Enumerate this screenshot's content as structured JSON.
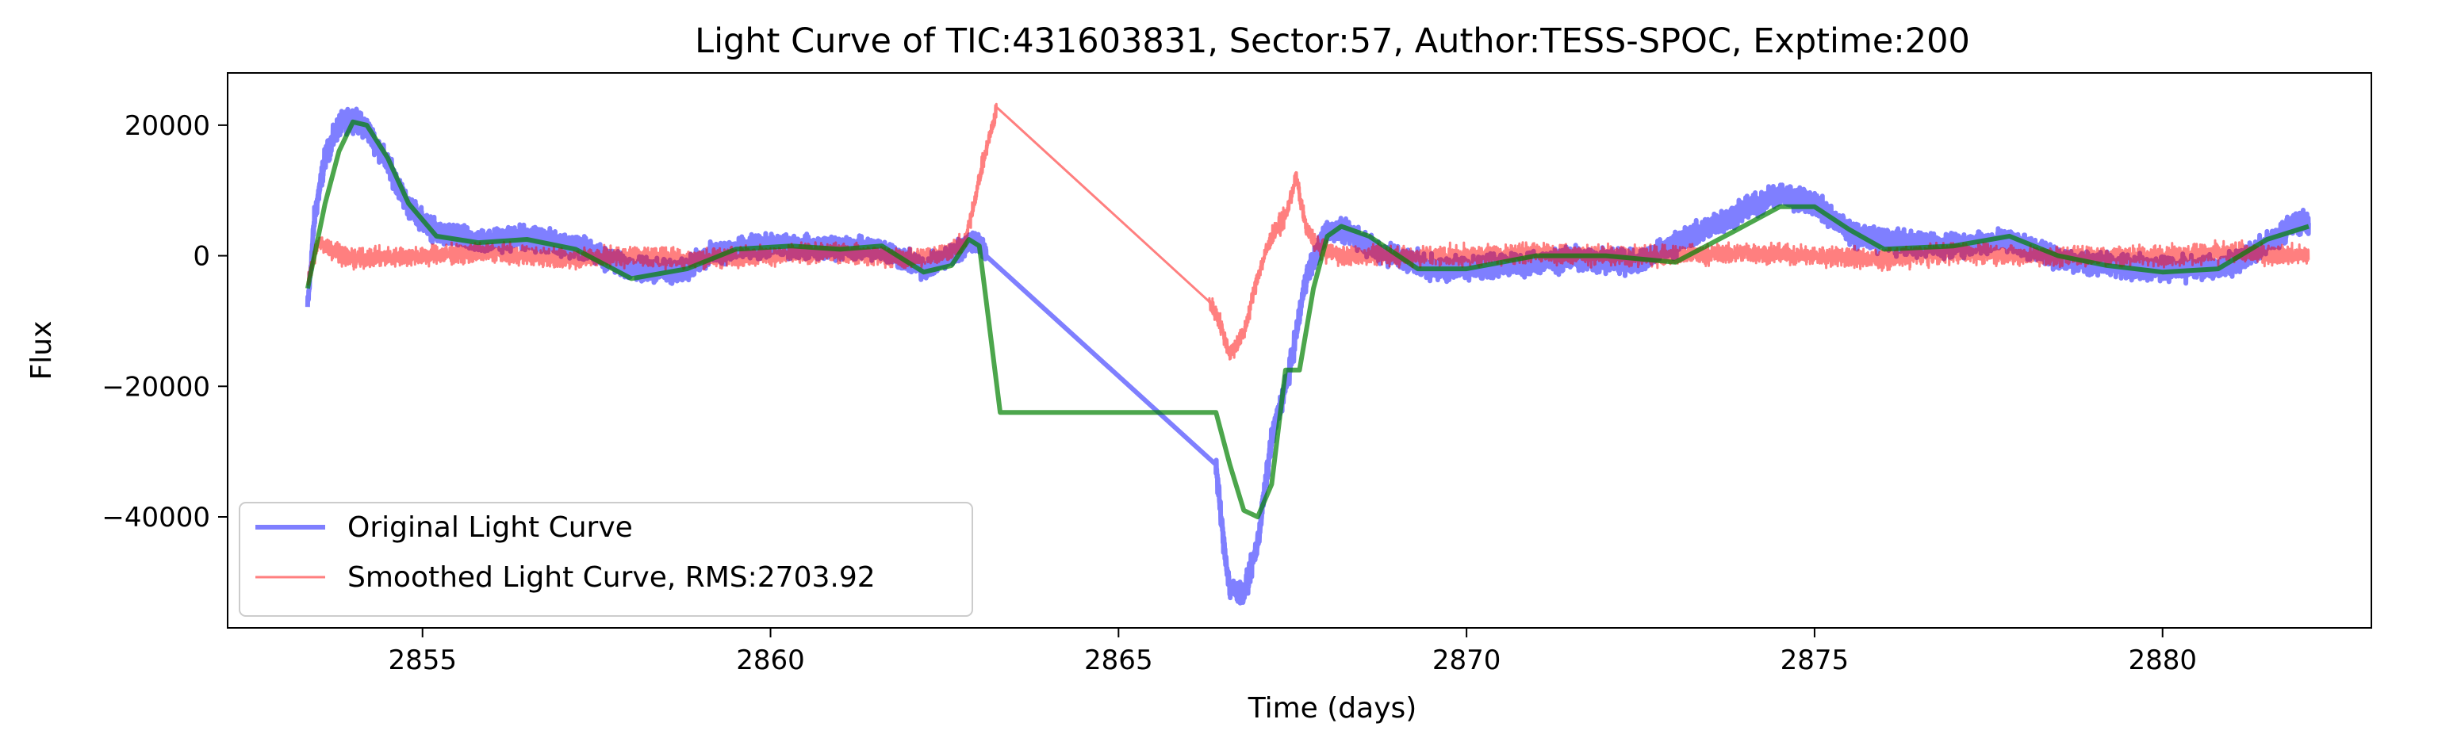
{
  "chart_data": {
    "type": "line",
    "title": "Light Curve of TIC:431603831, Sector:57, Author:TESS-SPOC, Exptime:200",
    "xlabel": "Time (days)",
    "ylabel": "Flux",
    "xlim": [
      2852.2,
      2883.0
    ],
    "ylim": [
      -57000,
      28000
    ],
    "xticks": [
      2855,
      2860,
      2865,
      2870,
      2875,
      2880
    ],
    "yticks": [
      -40000,
      -20000,
      0,
      20000
    ],
    "ytick_labels": [
      "−40000",
      "−20000",
      "0",
      "20000"
    ],
    "grid": false,
    "legend_position": "lower-left",
    "series": [
      {
        "name": "Original Light Curve",
        "color": "#0000ff",
        "alpha": 0.5,
        "noise": 1400,
        "x": [
          2853.35,
          2853.45,
          2853.6,
          2853.8,
          2854.0,
          2854.2,
          2854.5,
          2854.8,
          2855.2,
          2855.8,
          2856.5,
          2857.2,
          2858.0,
          2858.7,
          2859.2,
          2860.0,
          2861.0,
          2861.6,
          2862.2,
          2862.6,
          2862.9,
          2863.1,
          2866.4,
          2866.5,
          2866.6,
          2866.8,
          2867.0,
          2867.2,
          2867.45,
          2867.7,
          2868.0,
          2868.3,
          2868.7,
          2869.5,
          2870.5,
          2871.5,
          2872.5,
          2873.3,
          2874.0,
          2874.5,
          2875.0,
          2875.6,
          2876.3,
          2877.0,
          2877.8,
          2878.5,
          2879.3,
          2880.0,
          2880.8,
          2881.4,
          2881.9,
          2882.1
        ],
        "y": [
          -8000,
          6000,
          15000,
          20000,
          21000,
          19500,
          14000,
          7500,
          3500,
          2200,
          2800,
          1500,
          -2000,
          -2500,
          500,
          1500,
          1200,
          1000,
          -2000,
          0,
          2500,
          500,
          -32000,
          -43000,
          -51000,
          -52000,
          -44000,
          -28000,
          -18000,
          -3000,
          4000,
          3500,
          1000,
          -2000,
          -1500,
          -500,
          -1000,
          3500,
          7000,
          9500,
          8000,
          3000,
          2000,
          1500,
          2500,
          -500,
          -1500,
          -2000,
          -2000,
          1000,
          5000,
          5000
        ]
      },
      {
        "name": "Smoothed Light Curve, RMS:2703.92",
        "color": "#ff0000",
        "alpha": 0.5,
        "noise": 1200,
        "x": [
          2853.35,
          2853.5,
          2854.0,
          2855.0,
          2856.0,
          2857.0,
          2858.0,
          2859.0,
          2860.0,
          2861.0,
          2862.0,
          2862.5,
          2862.8,
          2863.0,
          2863.25,
          2866.3,
          2866.45,
          2866.6,
          2866.8,
          2867.0,
          2867.2,
          2867.4,
          2867.55,
          2867.7,
          2867.9,
          2868.2,
          2869.0,
          2870.0,
          2871.0,
          2872.0,
          2873.0,
          2874.0,
          2875.0,
          2876.0,
          2877.0,
          2878.0,
          2879.0,
          2880.0,
          2881.0,
          2882.1
        ],
        "y": [
          -4000,
          2000,
          -500,
          0,
          500,
          -500,
          0,
          -500,
          0,
          500,
          -500,
          500,
          2000,
          12000,
          22500,
          -7000,
          -10000,
          -15000,
          -12000,
          -3000,
          3000,
          6000,
          12000,
          4000,
          1000,
          0,
          0,
          0,
          500,
          0,
          0,
          500,
          0,
          -500,
          500,
          0,
          0,
          0,
          500,
          0
        ]
      },
      {
        "name": "",
        "color": "#008000",
        "alpha": 0.7,
        "noise": 0,
        "x": [
          2853.35,
          2853.6,
          2853.8,
          2854.0,
          2854.2,
          2854.5,
          2854.8,
          2855.2,
          2855.8,
          2856.5,
          2857.2,
          2858.0,
          2858.8,
          2859.5,
          2860.3,
          2861.0,
          2861.6,
          2862.2,
          2862.6,
          2862.85,
          2863.0,
          2863.3,
          2866.4,
          2866.6,
          2866.8,
          2867.0,
          2867.2,
          2867.4,
          2867.6,
          2867.8,
          2868.0,
          2868.2,
          2868.6,
          2869.3,
          2870.0,
          2871.0,
          2872.0,
          2873.0,
          2873.8,
          2874.5,
          2875.0,
          2875.5,
          2876.0,
          2877.0,
          2877.8,
          2878.5,
          2879.2,
          2880.0,
          2880.8,
          2881.5,
          2882.1
        ],
        "y": [
          -5000,
          8000,
          16000,
          20500,
          20000,
          15000,
          8000,
          3000,
          2000,
          2500,
          1000,
          -3500,
          -2000,
          1000,
          1500,
          1000,
          1500,
          -2500,
          -1500,
          2500,
          1500,
          -24000,
          -24000,
          -32000,
          -39000,
          -40000,
          -35000,
          -17500,
          -17500,
          -5000,
          3000,
          4500,
          3000,
          -2000,
          -2000,
          0,
          0,
          -1000,
          3500,
          7500,
          7500,
          4000,
          1000,
          1500,
          3000,
          0,
          -1500,
          -2500,
          -2000,
          2500,
          4500
        ]
      }
    ]
  }
}
